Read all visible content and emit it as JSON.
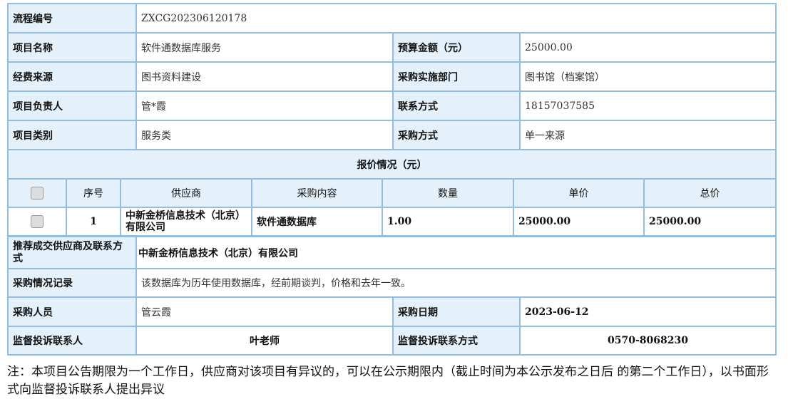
{
  "info": {
    "process_no_label": "流程编号",
    "process_no": "ZXCG202306120178",
    "project_name_label": "项目名称",
    "project_name": "软件通数据库服务",
    "budget_label": "预算金额（元）",
    "budget": "25000.00",
    "fund_source_label": "经费来源",
    "fund_source": "图书资料建设",
    "dept_label": "采购实施部门",
    "dept": "图书馆（档案馆）",
    "leader_label": "项目负责人",
    "leader": "管*霞",
    "contact_label": "联系方式",
    "contact": "18157037585",
    "category_label": "项目类别",
    "category": "服务类",
    "method_label": "采购方式",
    "method": "单一来源",
    "quote_title": "报价情况（元）"
  },
  "quotes": {
    "headers": [
      "序号",
      "供应商",
      "采购内容",
      "数量",
      "单价",
      "总价"
    ],
    "rows": [
      {
        "no": "1",
        "supplier": "中新金桥信息技术（北京）有限公司",
        "content": "软件通数据库",
        "qty": "1.00",
        "unit": "25000.00",
        "total": "25000.00"
      }
    ]
  },
  "result": {
    "recommend_label": "推荐成交供应商及联系方式",
    "recommend": "中新金桥信息技术（北京）有限公司",
    "record_label": "采购情况记录",
    "record": "该数据库为历年使用数据库，经前期谈判，价格和去年一致。",
    "buyer_label": "采购人员",
    "buyer": "管云霞",
    "date_label": "采购日期",
    "date": "2023-06-12",
    "supervisor_label": "监督投诉联系人",
    "supervisor": "叶老师",
    "supervisor_contact_label": "监督投诉联系方式",
    "supervisor_contact": "0570-8068230"
  },
  "note": "注：本项目公告期限为一个工作日，供应商对该项目有异议的，可以在公示期限内（截止时间为本公示发布之日后 的第二个工作日），以书面形式向监督投诉联系人提出异议"
}
